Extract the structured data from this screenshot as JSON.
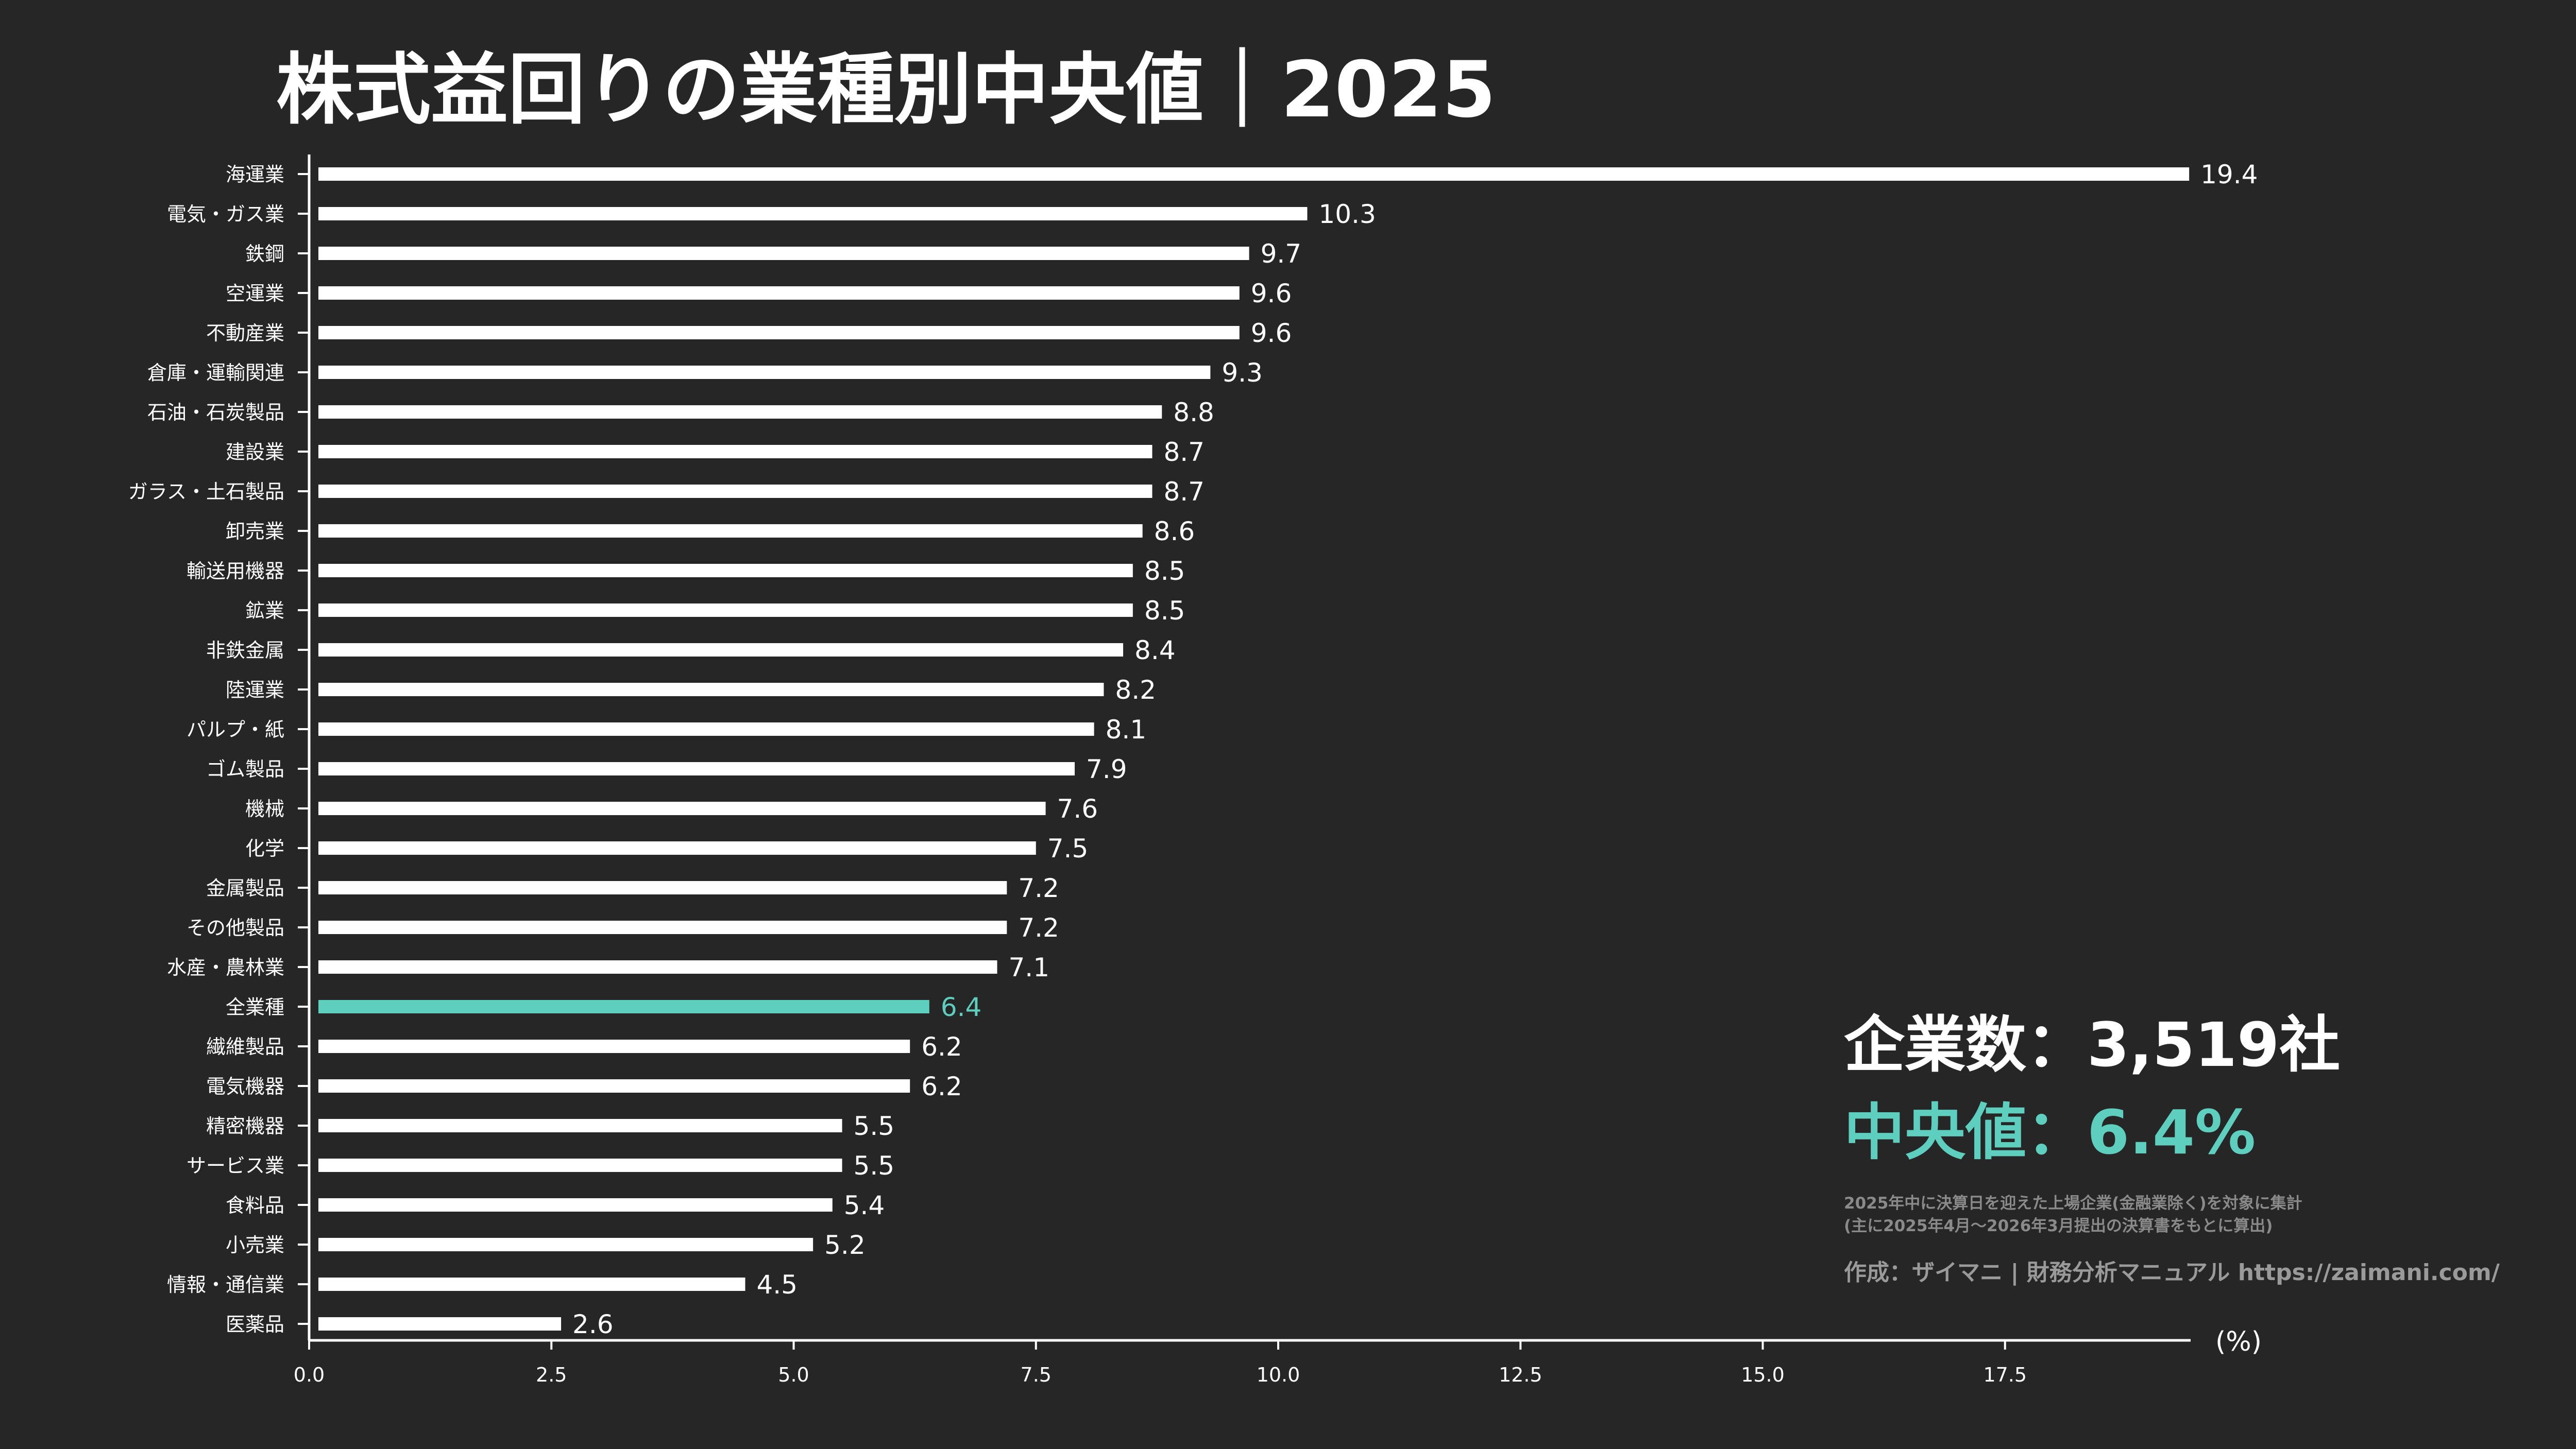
{
  "title": "株式益回りの業種別中央値｜2025",
  "annotations": {
    "company_count": "企業数：3,519社",
    "median": "中央値：6.4%",
    "note_line1": "2025年中に決算日を迎えた上場企業(金融業除く)を対象に集計",
    "note_line2": "(主に2025年4月〜2026年3月提出の決算書をもとに算出)",
    "credit": "作成：ザイマニ | 財務分析マニュアル https://zaimani.com/"
  },
  "colors": {
    "background": "#262626",
    "bar": "#ffffff",
    "highlight": "#5ecfbf",
    "text": "#ffffff"
  },
  "chart_data": {
    "type": "bar",
    "orientation": "horizontal",
    "title": "株式益回りの業種別中央値｜2025",
    "xlabel": "(%)",
    "ylabel": "",
    "xlim": [
      0,
      19.4
    ],
    "xticks": [
      "0.0",
      "2.5",
      "5.0",
      "7.5",
      "10.0",
      "12.5",
      "15.0",
      "17.5"
    ],
    "grid": false,
    "highlight_category": "全業種",
    "categories": [
      "海運業",
      "電気・ガス業",
      "鉄鋼",
      "空運業",
      "不動産業",
      "倉庫・運輸関連",
      "石油・石炭製品",
      "建設業",
      "ガラス・土石製品",
      "卸売業",
      "輸送用機器",
      "鉱業",
      "非鉄金属",
      "陸運業",
      "パルプ・紙",
      "ゴム製品",
      "機械",
      "化学",
      "金属製品",
      "その他製品",
      "水産・農林業",
      "全業種",
      "繊維製品",
      "電気機器",
      "精密機器",
      "サービス業",
      "食料品",
      "小売業",
      "情報・通信業",
      "医薬品"
    ],
    "values": [
      19.4,
      10.3,
      9.7,
      9.6,
      9.6,
      9.3,
      8.8,
      8.7,
      8.7,
      8.6,
      8.5,
      8.5,
      8.4,
      8.2,
      8.1,
      7.9,
      7.6,
      7.5,
      7.2,
      7.2,
      7.1,
      6.4,
      6.2,
      6.2,
      5.5,
      5.5,
      5.4,
      5.2,
      4.5,
      2.6
    ]
  }
}
